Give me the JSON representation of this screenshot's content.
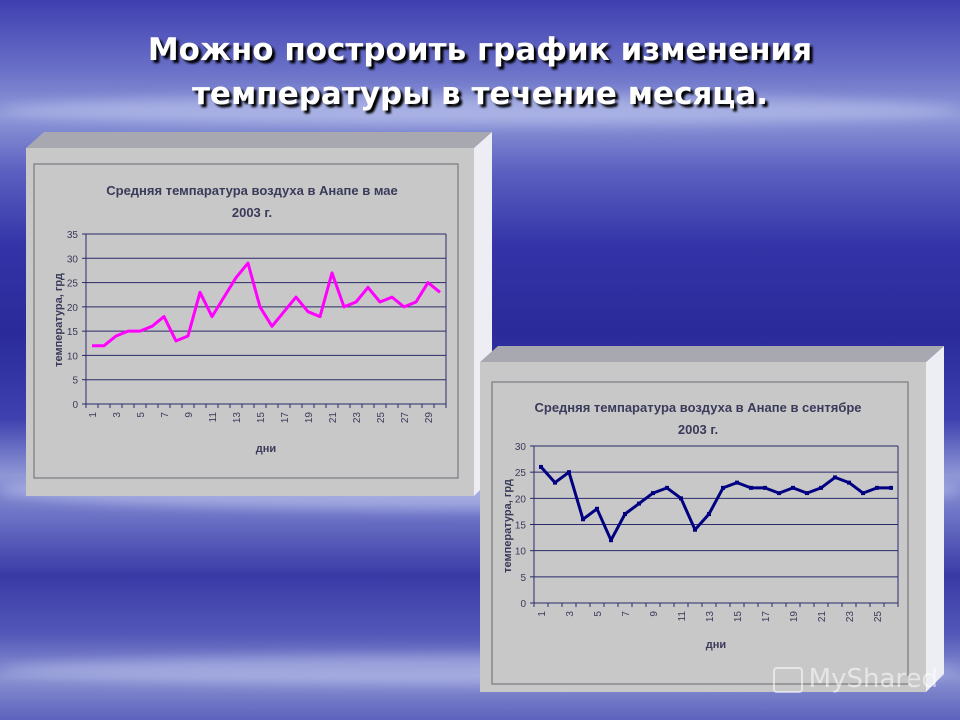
{
  "slide": {
    "title_line1": "Можно построить график изменения",
    "title_line2": "температуры в течение месяца.",
    "watermark": "MyShared"
  },
  "chart_data": [
    {
      "type": "line",
      "title_line1": "Средняя темпаратура воздуха в Анапе в мае",
      "title_line2": "2003 г.",
      "xlabel": "дни",
      "ylabel": "температура, грд",
      "x": [
        1,
        2,
        3,
        4,
        5,
        6,
        7,
        8,
        9,
        10,
        11,
        12,
        13,
        14,
        15,
        16,
        17,
        18,
        19,
        20,
        21,
        22,
        23,
        24,
        25,
        26,
        27,
        28,
        29,
        30
      ],
      "x_tick_labels": [
        "1",
        "3",
        "5",
        "7",
        "9",
        "11",
        "13",
        "15",
        "17",
        "19",
        "21",
        "23",
        "25",
        "27",
        "29"
      ],
      "y_tick_labels": [
        "0",
        "5",
        "10",
        "15",
        "20",
        "25",
        "30",
        "35"
      ],
      "ylim": [
        0,
        35
      ],
      "grid": true,
      "series": [
        {
          "color": "#ff00ff",
          "values": [
            12,
            12,
            14,
            15,
            15,
            16,
            18,
            13,
            14,
            23,
            18,
            22,
            26,
            29,
            20,
            16,
            19,
            22,
            19,
            18,
            27,
            20,
            21,
            24,
            21,
            22,
            20,
            21,
            25,
            23
          ]
        }
      ]
    },
    {
      "type": "line",
      "title_line1": "Средняя темпаратура воздуха в Анапе в сентябре",
      "title_line2": "2003 г.",
      "xlabel": "дни",
      "ylabel": "температура, грд",
      "x": [
        1,
        2,
        3,
        4,
        5,
        6,
        7,
        8,
        9,
        10,
        11,
        12,
        13,
        14,
        15,
        16,
        17,
        18,
        19,
        20,
        21,
        22,
        23,
        24,
        25,
        26
      ],
      "x_tick_labels": [
        "1",
        "3",
        "5",
        "7",
        "9",
        "11",
        "13",
        "15",
        "17",
        "19",
        "21",
        "23",
        "25"
      ],
      "y_tick_labels": [
        "0",
        "5",
        "10",
        "15",
        "20",
        "25",
        "30"
      ],
      "ylim": [
        0,
        30
      ],
      "grid": true,
      "series": [
        {
          "color": "#000080",
          "values": [
            26,
            23,
            25,
            16,
            18,
            12,
            17,
            19,
            21,
            22,
            20,
            14,
            17,
            22,
            23,
            22,
            22,
            21,
            22,
            21,
            22,
            24,
            23,
            21,
            22,
            22
          ]
        }
      ]
    }
  ]
}
